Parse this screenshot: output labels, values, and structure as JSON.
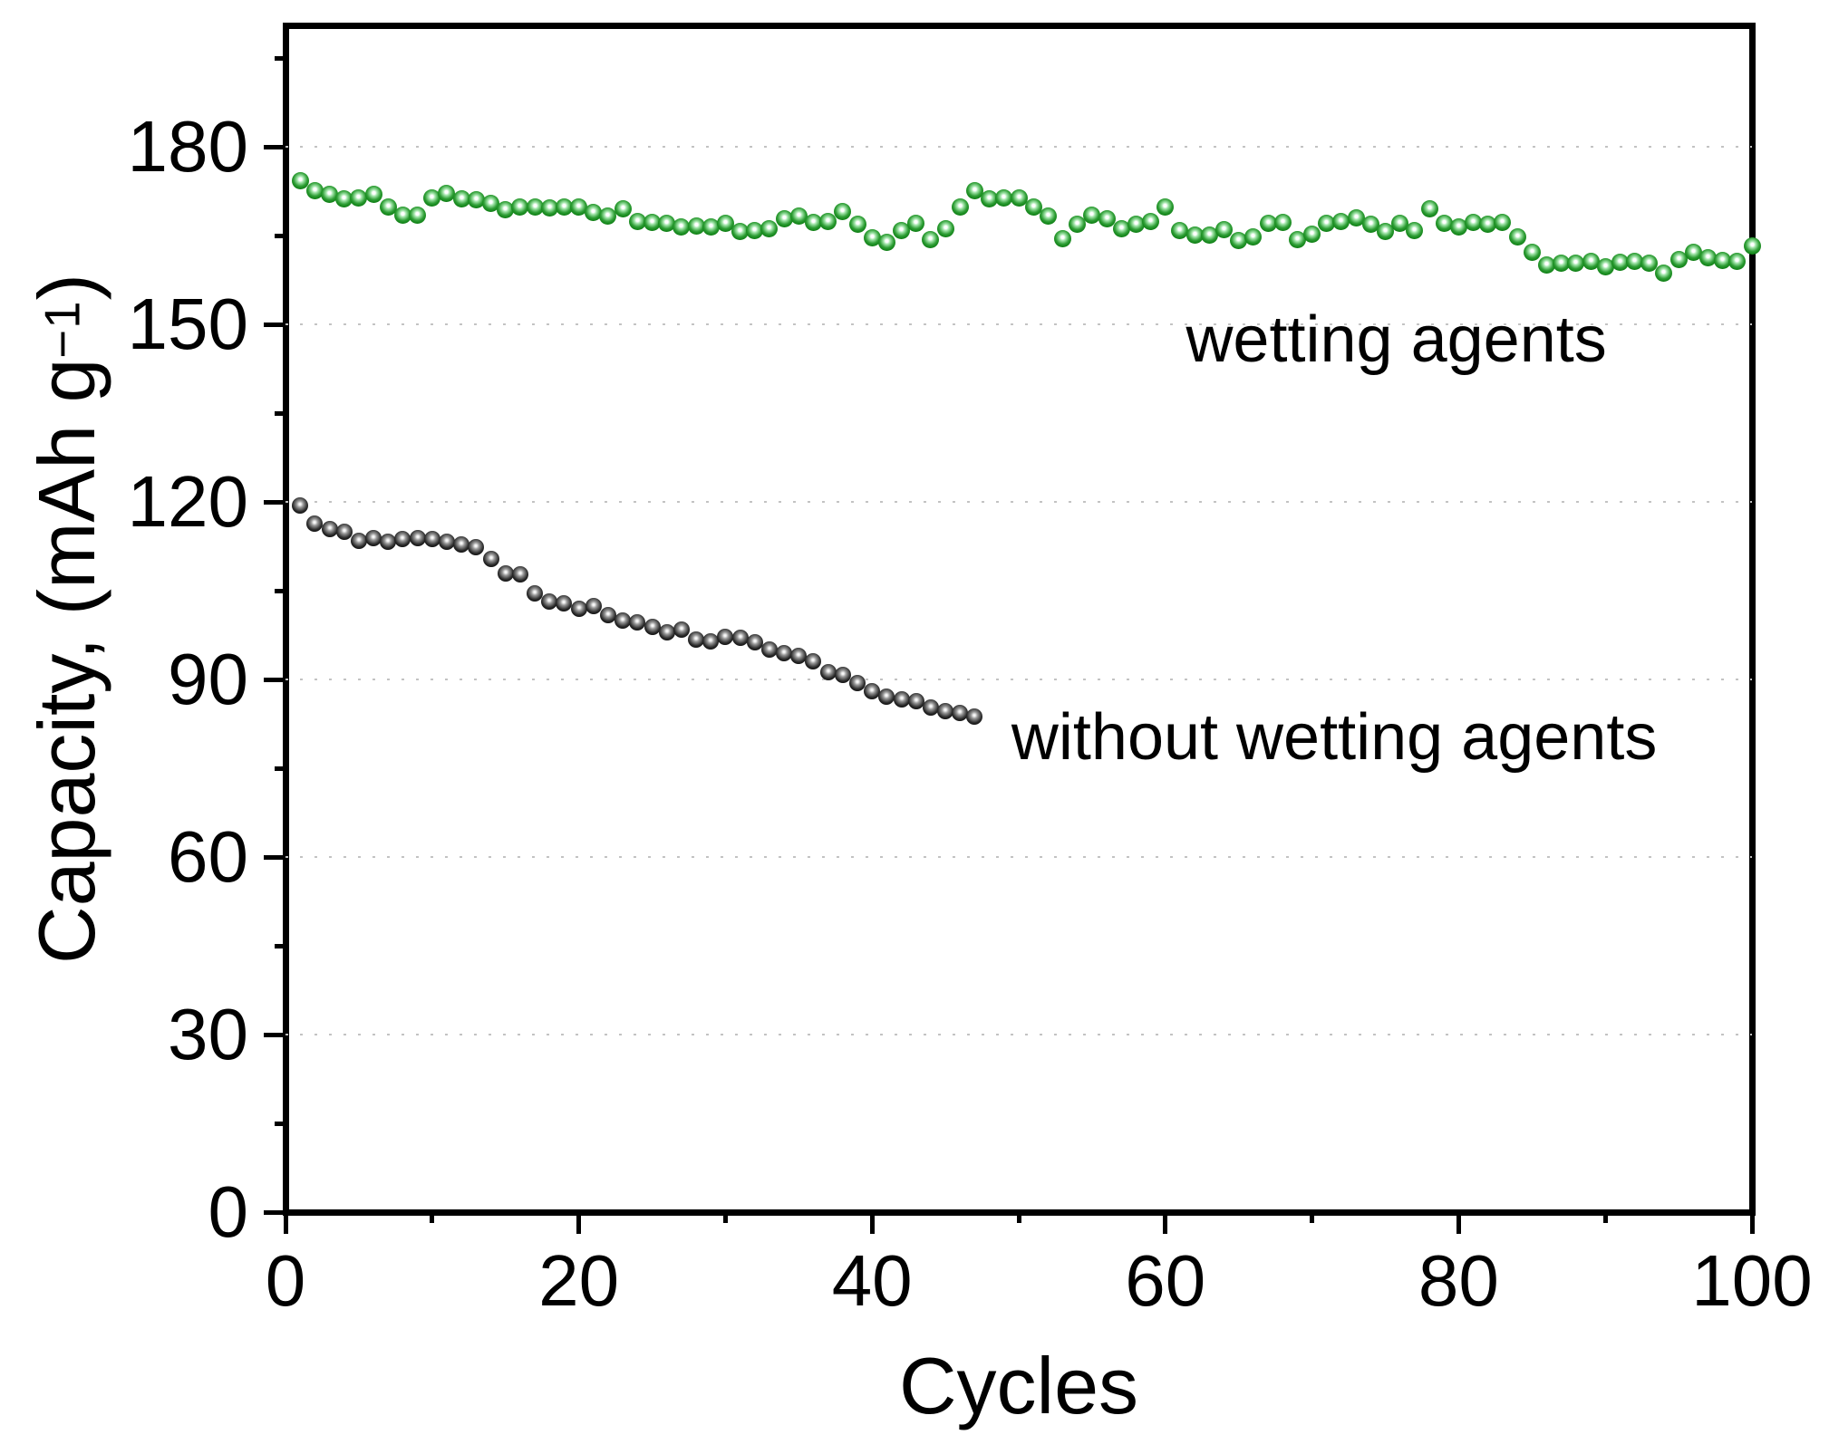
{
  "figure": {
    "x_axis_title": "Cycles",
    "y_axis_title_main": "Capacity, (mAh g",
    "y_axis_title_sup": "−1",
    "y_axis_title_close": ")",
    "label_wetting": "wetting agents",
    "label_without": "without wetting agents",
    "accent_green": "#0c7d12",
    "accent_black": "#000000",
    "gridline_color": "#c3c3c3"
  },
  "chart_data": {
    "type": "scatter",
    "title": "",
    "xlabel": "Cycles",
    "ylabel": "Capacity, (mAh g−1)",
    "xlim": [
      0,
      100
    ],
    "ylim": [
      0,
      200.5
    ],
    "x_ticks": [
      0,
      20,
      40,
      60,
      80,
      100
    ],
    "x_minor_ticks": [
      10,
      30,
      50,
      70,
      90
    ],
    "y_ticks": [
      180,
      150,
      120,
      90,
      60,
      30,
      0
    ],
    "y_minor_ticks": [
      15,
      45,
      75,
      105,
      135,
      165,
      195
    ],
    "grid": "horizontal dotted lines at major y ticks, box frame, ticks outside on left and bottom",
    "legend_position": "none (in-plot text annotations)",
    "series": [
      {
        "name": "wetting agents",
        "color": "#0c7d12",
        "marker": "glossy green sphere",
        "x": [
          1,
          2,
          3,
          4,
          5,
          6,
          7,
          8,
          9,
          10,
          11,
          12,
          13,
          14,
          15,
          16,
          17,
          18,
          19,
          20,
          21,
          22,
          23,
          24,
          25,
          26,
          27,
          28,
          29,
          30,
          31,
          32,
          33,
          34,
          35,
          36,
          37,
          38,
          39,
          40,
          41,
          42,
          43,
          44,
          45,
          46,
          47,
          48,
          49,
          50,
          51,
          52,
          53,
          54,
          55,
          56,
          57,
          58,
          59,
          60,
          61,
          62,
          63,
          64,
          65,
          66,
          67,
          68,
          69,
          70,
          71,
          72,
          73,
          74,
          75,
          76,
          77,
          78,
          79,
          80,
          81,
          82,
          83,
          84,
          85,
          86,
          87,
          88,
          89,
          90,
          91,
          92,
          93,
          94,
          95,
          96,
          97,
          98,
          99,
          100
        ],
        "y": [
          174.2,
          172.6,
          172.0,
          171.2,
          171.4,
          171.9,
          169.9,
          168.5,
          168.5,
          171.4,
          172.2,
          171.2,
          171.0,
          170.5,
          169.4,
          169.9,
          169.9,
          169.7,
          169.8,
          169.8,
          168.9,
          168.3,
          169.5,
          167.4,
          167.3,
          167.1,
          166.4,
          166.6,
          166.5,
          167.1,
          165.7,
          165.9,
          166.1,
          167.8,
          168.3,
          167.3,
          167.4,
          169.0,
          166.9,
          164.6,
          163.9,
          165.9,
          167.1,
          164.3,
          166.1,
          169.9,
          172.6,
          171.2,
          171.4,
          171.4,
          169.9,
          168.3,
          164.5,
          166.9,
          168.5,
          167.8,
          166.1,
          166.9,
          167.4,
          169.9,
          165.9,
          165.1,
          165.1,
          166.0,
          164.2,
          164.8,
          167.1,
          167.2,
          164.3,
          165.3,
          167.1,
          167.4,
          168.0,
          166.9,
          165.7,
          167.1,
          165.9,
          169.5,
          167.1,
          166.4,
          167.3,
          166.9,
          167.2,
          164.8,
          162.2,
          160.1,
          160.3,
          160.3,
          160.6,
          159.7,
          160.5,
          160.7,
          160.3,
          158.6,
          161.0,
          162.2,
          161.3,
          160.8,
          160.7,
          163.2
        ]
      },
      {
        "name": "without wetting agents",
        "color": "#000000",
        "marker": "glossy black sphere",
        "x": [
          1,
          2,
          3,
          4,
          5,
          6,
          7,
          8,
          9,
          10,
          11,
          12,
          13,
          14,
          15,
          16,
          17,
          18,
          19,
          20,
          21,
          22,
          23,
          24,
          25,
          26,
          27,
          28,
          29,
          30,
          31,
          32,
          33,
          34,
          35,
          36,
          37,
          38,
          39,
          40,
          41,
          42,
          43,
          44,
          45,
          46,
          47
        ],
        "y": [
          119.4,
          116.3,
          115.4,
          114.9,
          113.5,
          113.9,
          113.2,
          113.7,
          113.9,
          113.7,
          113.3,
          112.8,
          112.4,
          110.3,
          107.9,
          107.8,
          104.5,
          103.2,
          102.8,
          101.9,
          102.4,
          100.8,
          100.0,
          99.6,
          98.9,
          98.0,
          98.4,
          96.8,
          96.5,
          97.2,
          97.0,
          96.3,
          95.0,
          94.4,
          94.0,
          93.0,
          91.2,
          90.8,
          89.4,
          88.0,
          87.1,
          86.6,
          86.3,
          85.3,
          84.6,
          84.3,
          83.8
        ]
      }
    ],
    "annotations": [
      {
        "text": "wetting agents",
        "x": 61.4,
        "y": 147.4,
        "align": "left"
      },
      {
        "text": "without wetting agents",
        "x": 49.5,
        "y": 80.2,
        "align": "left"
      }
    ]
  }
}
